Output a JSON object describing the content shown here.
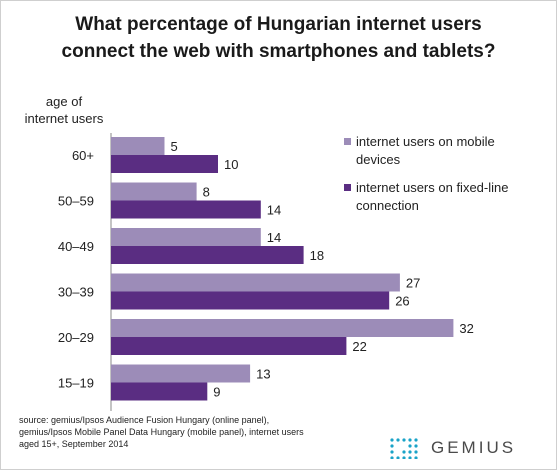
{
  "title_lines": [
    "What percentage of Hungarian internet users",
    "connect the web with smartphones and tablets?"
  ],
  "axis_caption_lines": [
    "age of",
    "internet users"
  ],
  "source_lines": [
    "source: gemius/Ipsos Audience Fusion Hungary (online panel),",
    "gemius/Ipsos Mobile Panel Data Hungary (mobile panel), internet users",
    "aged 15+, September 2014"
  ],
  "logo_text": "GEMIUS",
  "chart_data": {
    "type": "bar",
    "orientation": "horizontal",
    "title": "What percentage of Hungarian internet users connect the web with smartphones and tablets?",
    "ylabel": "age of internet users",
    "categories": [
      "60+",
      "50–59",
      "40–49",
      "30–39",
      "20–29",
      "15–19"
    ],
    "series": [
      {
        "name": "internet users on mobile devices",
        "values": [
          5,
          8,
          14,
          27,
          32,
          13
        ],
        "color": "#9c8cb8"
      },
      {
        "name": "internet users on fixed-line connection",
        "values": [
          10,
          14,
          18,
          26,
          22,
          9
        ],
        "color": "#5a2d82"
      }
    ],
    "xlim": [
      0,
      40
    ],
    "data_labels": true,
    "grid": false,
    "legend_position": "right",
    "legend_lines": [
      [
        "internet users on mobile",
        "devices"
      ],
      [
        "internet users on fixed-line",
        "connection"
      ]
    ]
  }
}
